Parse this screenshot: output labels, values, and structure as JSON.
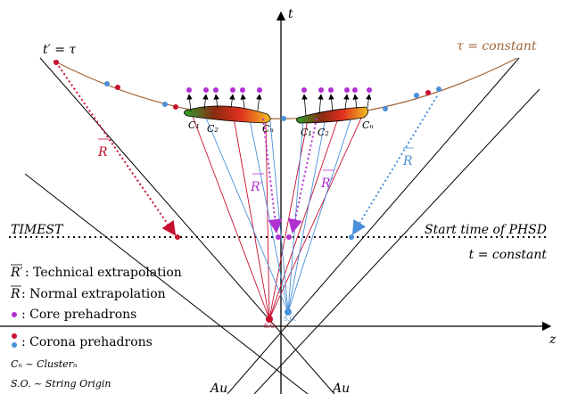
{
  "axes": {
    "t": "t",
    "z": "z"
  },
  "curve_labels": {
    "left": "t′ = τ",
    "right": "τ = constant"
  },
  "time_lines": {
    "timest": "TIMEST",
    "phsd": "Start time of PHSD",
    "t_constant": "t = constant"
  },
  "clusters": [
    {
      "labels": [
        "C₁",
        "C₂",
        "Cₙ"
      ]
    },
    {
      "labels": [
        "C₁",
        "C₂",
        "Cₙ"
      ]
    }
  ],
  "vector_labels": [
    "R",
    "R′",
    "R′",
    "R"
  ],
  "string_origins": [
    "S.O.",
    "S.O."
  ],
  "nuclei": [
    "Au",
    "Au"
  ],
  "legend": [
    {
      "symbol": "R′",
      "text": ": Technical extrapolation"
    },
    {
      "symbol": "R",
      "text": ": Normal extrapolation"
    },
    {
      "text": ": Core prehadrons"
    },
    {
      "text": ": Corona prehadrons"
    },
    {
      "text": "Cₙ ~ Clusterₙ"
    },
    {
      "text": "S.O.  ~ String Origin"
    }
  ]
}
